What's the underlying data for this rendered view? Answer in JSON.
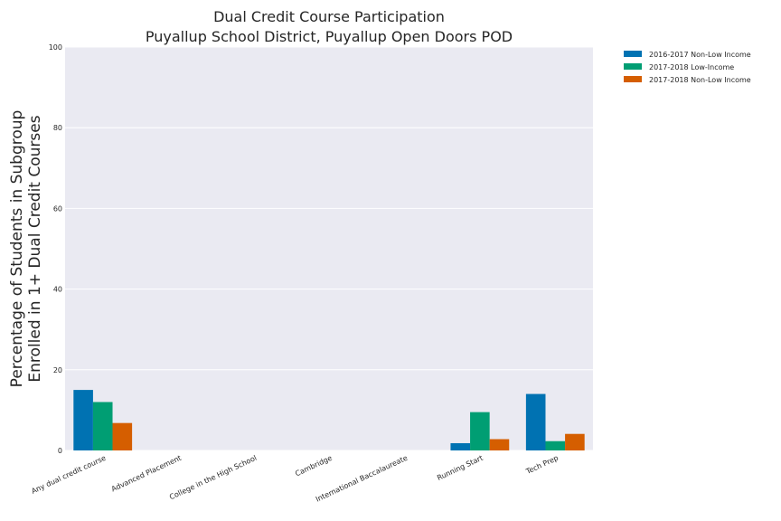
{
  "chart_data": {
    "type": "bar",
    "title": "Dual Credit Course Participation",
    "subtitle": "Puyallup School District, Puyallup Open Doors POD",
    "ylabel_line1": "Percentage of Students in Subgroup",
    "ylabel_line2": "Enrolled in 1+ Dual Credit Courses",
    "xlabel": "",
    "ylim": [
      0,
      100
    ],
    "yticks": [
      0,
      20,
      40,
      60,
      80,
      100
    ],
    "grid": true,
    "legend_position": "outside-top-right",
    "categories": [
      "Any dual credit course",
      "Advanced Placement",
      "College in the High School",
      "Cambridge",
      "International Baccalaureate",
      "Running Start",
      "Tech Prep"
    ],
    "series": [
      {
        "name": "2016-2017 Non-Low Income",
        "color": "#0072b2",
        "values": [
          15,
          0,
          0,
          0,
          0,
          1.8,
          14
        ]
      },
      {
        "name": "2017-2018 Low-Income",
        "color": "#009e73",
        "values": [
          12,
          0,
          0,
          0,
          0,
          9.5,
          2.3
        ]
      },
      {
        "name": "2017-2018 Non-Low Income",
        "color": "#d55e00",
        "values": [
          6.8,
          0,
          0,
          0,
          0,
          2.8,
          4.1
        ]
      }
    ],
    "background_color": "#eaeaf2",
    "grid_color": "#ffffff"
  }
}
